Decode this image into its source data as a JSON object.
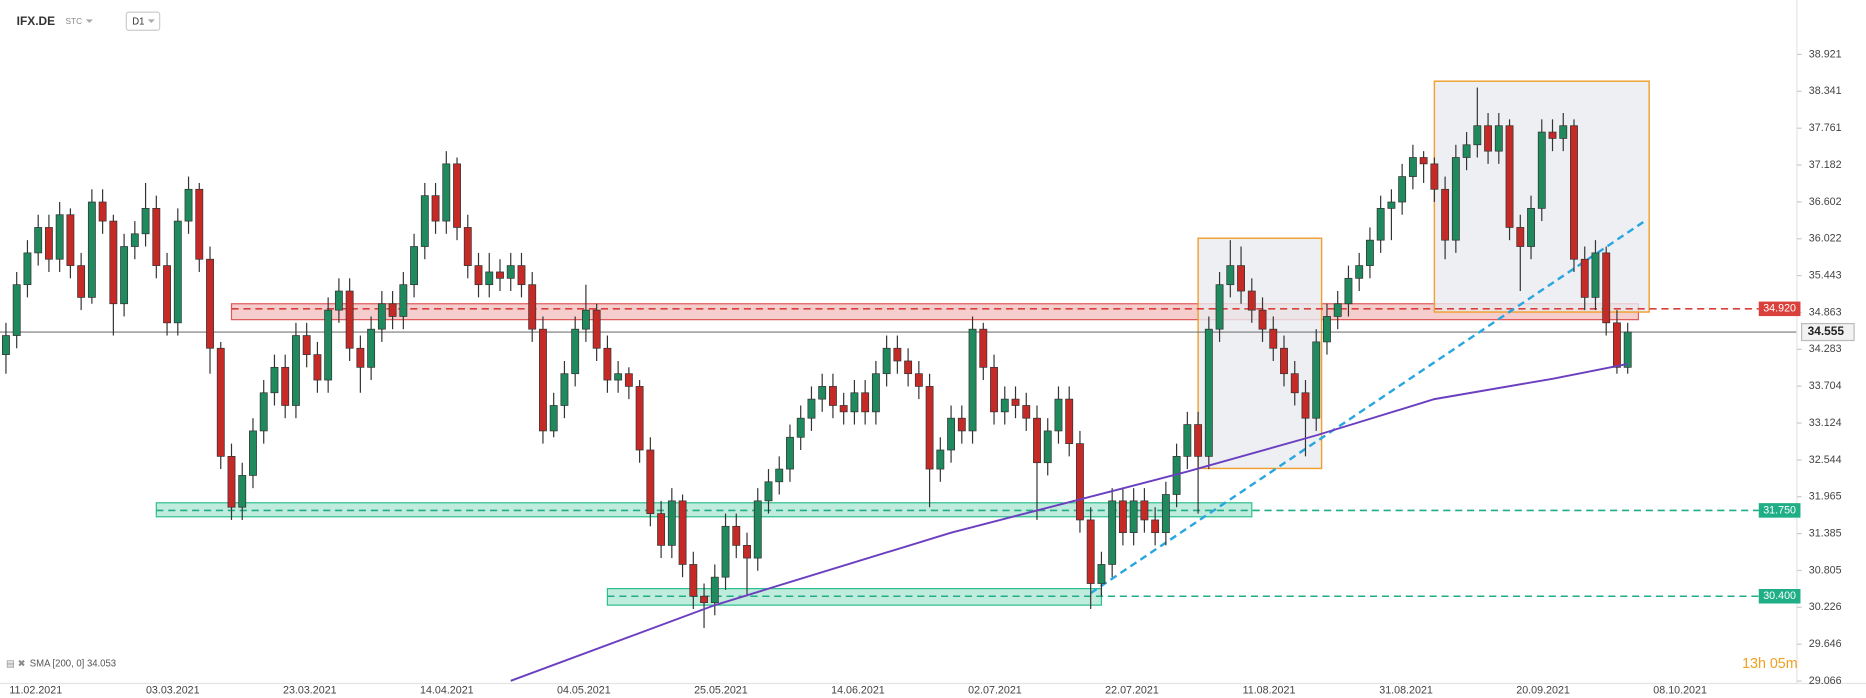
{
  "chart_data": {
    "type": "candlestick",
    "symbol": "IFX.DE",
    "source": "STC",
    "interval": "D1",
    "ylim": [
      29.028,
      39.777
    ],
    "yticks": [
      38.921,
      38.341,
      37.761,
      37.182,
      36.602,
      36.022,
      35.443,
      34.863,
      34.283,
      33.704,
      33.124,
      32.544,
      31.965,
      31.385,
      30.805,
      30.226,
      29.646,
      29.066
    ],
    "xticks": [
      "11.02.2021",
      "03.03.2021",
      "23.03.2021",
      "14.04.2021",
      "04.05.2021",
      "25.05.2021",
      "14.06.2021",
      "02.07.2021",
      "22.07.2021",
      "11.08.2021",
      "31.08.2021",
      "20.09.2021",
      "08.10.2021"
    ],
    "up_color": "#1f8a5e",
    "down_color": "#c62a26",
    "candles": [
      [
        34.2,
        34.7,
        33.9,
        34.5
      ],
      [
        34.5,
        35.5,
        34.3,
        35.3
      ],
      [
        35.3,
        36.0,
        35.1,
        35.8
      ],
      [
        35.8,
        36.4,
        35.6,
        36.2
      ],
      [
        36.2,
        36.4,
        35.5,
        35.7
      ],
      [
        35.7,
        36.6,
        35.5,
        36.4
      ],
      [
        36.4,
        36.5,
        35.4,
        35.6
      ],
      [
        35.6,
        35.8,
        34.9,
        35.1
      ],
      [
        35.1,
        36.8,
        35.0,
        36.6
      ],
      [
        36.6,
        36.8,
        36.1,
        36.3
      ],
      [
        36.3,
        36.4,
        34.5,
        35.0
      ],
      [
        35.0,
        36.1,
        34.8,
        35.9
      ],
      [
        35.9,
        36.3,
        35.7,
        36.1
      ],
      [
        36.1,
        36.9,
        35.9,
        36.5
      ],
      [
        36.5,
        36.7,
        35.4,
        35.6
      ],
      [
        35.6,
        35.8,
        34.5,
        34.7
      ],
      [
        34.7,
        36.5,
        34.5,
        36.3
      ],
      [
        36.3,
        37.0,
        36.1,
        36.8
      ],
      [
        36.8,
        36.9,
        35.5,
        35.7
      ],
      [
        35.7,
        35.9,
        33.9,
        34.3
      ],
      [
        34.3,
        34.4,
        32.4,
        32.6
      ],
      [
        32.6,
        32.8,
        31.6,
        31.8
      ],
      [
        31.8,
        32.5,
        31.6,
        32.3
      ],
      [
        32.3,
        33.2,
        32.1,
        33.0
      ],
      [
        33.0,
        33.8,
        32.8,
        33.6
      ],
      [
        33.6,
        34.2,
        33.4,
        34.0
      ],
      [
        34.0,
        34.2,
        33.2,
        33.4
      ],
      [
        33.4,
        34.7,
        33.2,
        34.5
      ],
      [
        34.5,
        34.7,
        34.0,
        34.2
      ],
      [
        34.2,
        34.4,
        33.6,
        33.8
      ],
      [
        33.8,
        35.1,
        33.6,
        34.9
      ],
      [
        34.9,
        35.4,
        34.7,
        35.2
      ],
      [
        35.2,
        35.4,
        34.1,
        34.3
      ],
      [
        34.3,
        34.5,
        33.6,
        34.0
      ],
      [
        34.0,
        34.8,
        33.8,
        34.6
      ],
      [
        34.6,
        35.2,
        34.4,
        35.0
      ],
      [
        35.0,
        35.2,
        34.6,
        34.8
      ],
      [
        34.8,
        35.5,
        34.6,
        35.3
      ],
      [
        35.3,
        36.1,
        35.1,
        35.9
      ],
      [
        35.9,
        36.9,
        35.7,
        36.7
      ],
      [
        36.7,
        36.9,
        36.1,
        36.3
      ],
      [
        36.3,
        37.4,
        36.1,
        37.2
      ],
      [
        37.2,
        37.3,
        36.0,
        36.2
      ],
      [
        36.2,
        36.4,
        35.4,
        35.6
      ],
      [
        35.6,
        35.8,
        35.1,
        35.3
      ],
      [
        35.3,
        35.8,
        35.1,
        35.5
      ],
      [
        35.5,
        35.7,
        35.2,
        35.4
      ],
      [
        35.4,
        35.8,
        35.2,
        35.6
      ],
      [
        35.6,
        35.8,
        35.1,
        35.3
      ],
      [
        35.3,
        35.5,
        34.4,
        34.6
      ],
      [
        34.6,
        34.8,
        32.8,
        33.0
      ],
      [
        33.0,
        33.6,
        32.9,
        33.4
      ],
      [
        33.4,
        34.1,
        33.2,
        33.9
      ],
      [
        33.9,
        34.8,
        33.7,
        34.6
      ],
      [
        34.6,
        35.3,
        34.4,
        34.9
      ],
      [
        34.9,
        35.0,
        34.1,
        34.3
      ],
      [
        34.3,
        34.5,
        33.6,
        33.8
      ],
      [
        33.8,
        34.1,
        33.6,
        33.9
      ],
      [
        33.9,
        34.0,
        33.5,
        33.7
      ],
      [
        33.7,
        33.8,
        32.5,
        32.7
      ],
      [
        32.7,
        32.9,
        31.5,
        31.7
      ],
      [
        31.7,
        31.9,
        31.0,
        31.2
      ],
      [
        31.2,
        32.1,
        31.0,
        31.9
      ],
      [
        31.9,
        32.0,
        30.7,
        30.9
      ],
      [
        30.9,
        31.1,
        30.2,
        30.4
      ],
      [
        30.4,
        30.6,
        29.9,
        30.3
      ],
      [
        30.3,
        30.9,
        30.1,
        30.7
      ],
      [
        30.7,
        31.7,
        30.5,
        31.5
      ],
      [
        31.5,
        31.7,
        31.0,
        31.2
      ],
      [
        31.2,
        31.4,
        30.4,
        31.0
      ],
      [
        31.0,
        32.1,
        30.8,
        31.9
      ],
      [
        31.9,
        32.4,
        31.7,
        32.2
      ],
      [
        32.2,
        32.6,
        32.0,
        32.4
      ],
      [
        32.4,
        33.1,
        32.2,
        32.9
      ],
      [
        32.9,
        33.4,
        32.7,
        33.2
      ],
      [
        33.2,
        33.7,
        33.0,
        33.5
      ],
      [
        33.5,
        33.9,
        33.3,
        33.7
      ],
      [
        33.7,
        33.9,
        33.2,
        33.4
      ],
      [
        33.4,
        33.6,
        33.1,
        33.3
      ],
      [
        33.3,
        33.8,
        33.1,
        33.6
      ],
      [
        33.6,
        33.8,
        33.1,
        33.3
      ],
      [
        33.3,
        34.1,
        33.1,
        33.9
      ],
      [
        33.9,
        34.5,
        33.7,
        34.3
      ],
      [
        34.3,
        34.5,
        33.9,
        34.1
      ],
      [
        34.1,
        34.3,
        33.7,
        33.9
      ],
      [
        33.9,
        34.1,
        33.5,
        33.7
      ],
      [
        33.7,
        33.9,
        31.8,
        32.4
      ],
      [
        32.4,
        32.9,
        32.2,
        32.7
      ],
      [
        32.7,
        33.4,
        32.5,
        33.2
      ],
      [
        33.2,
        33.4,
        32.8,
        33.0
      ],
      [
        33.0,
        34.8,
        32.8,
        34.6
      ],
      [
        34.6,
        34.7,
        33.8,
        34.0
      ],
      [
        34.0,
        34.2,
        33.1,
        33.3
      ],
      [
        33.3,
        33.7,
        33.1,
        33.5
      ],
      [
        33.5,
        33.7,
        33.2,
        33.4
      ],
      [
        33.4,
        33.6,
        33.0,
        33.2
      ],
      [
        33.2,
        33.4,
        31.6,
        32.5
      ],
      [
        32.5,
        33.2,
        32.3,
        33.0
      ],
      [
        33.0,
        33.7,
        32.8,
        33.5
      ],
      [
        33.5,
        33.7,
        32.6,
        32.8
      ],
      [
        32.8,
        33.0,
        31.4,
        31.6
      ],
      [
        31.6,
        31.8,
        30.2,
        30.6
      ],
      [
        30.6,
        31.1,
        30.4,
        30.9
      ],
      [
        30.9,
        32.1,
        30.7,
        31.9
      ],
      [
        31.9,
        32.1,
        31.2,
        31.4
      ],
      [
        31.4,
        32.1,
        31.2,
        31.9
      ],
      [
        31.9,
        32.1,
        31.4,
        31.6
      ],
      [
        31.6,
        31.8,
        31.2,
        31.4
      ],
      [
        31.4,
        32.2,
        31.2,
        32.0
      ],
      [
        32.0,
        32.8,
        31.8,
        32.6
      ],
      [
        32.6,
        33.3,
        32.4,
        33.1
      ],
      [
        33.1,
        33.3,
        31.7,
        32.6
      ],
      [
        32.6,
        34.8,
        32.4,
        34.6
      ],
      [
        34.6,
        35.5,
        34.4,
        35.3
      ],
      [
        35.3,
        36.0,
        35.1,
        35.6
      ],
      [
        35.6,
        35.9,
        35.0,
        35.2
      ],
      [
        35.2,
        35.4,
        34.7,
        34.9
      ],
      [
        34.9,
        35.1,
        34.4,
        34.6
      ],
      [
        34.6,
        34.8,
        34.1,
        34.3
      ],
      [
        34.3,
        34.5,
        33.7,
        33.9
      ],
      [
        33.9,
        34.1,
        33.4,
        33.6
      ],
      [
        33.6,
        33.8,
        32.6,
        33.2
      ],
      [
        33.2,
        34.6,
        33.0,
        34.4
      ],
      [
        34.4,
        35.0,
        34.2,
        34.8
      ],
      [
        34.8,
        35.2,
        34.6,
        35.0
      ],
      [
        35.0,
        35.6,
        34.8,
        35.4
      ],
      [
        35.4,
        35.8,
        35.2,
        35.6
      ],
      [
        35.6,
        36.2,
        35.4,
        36.0
      ],
      [
        36.0,
        36.7,
        35.8,
        36.5
      ],
      [
        36.5,
        36.8,
        36.0,
        36.6
      ],
      [
        36.6,
        37.2,
        36.4,
        37.0
      ],
      [
        37.0,
        37.5,
        36.8,
        37.3
      ],
      [
        37.3,
        37.4,
        36.9,
        37.2
      ],
      [
        37.2,
        37.3,
        36.6,
        36.8
      ],
      [
        36.8,
        37.0,
        35.7,
        36.0
      ],
      [
        36.0,
        37.5,
        35.8,
        37.3
      ],
      [
        37.3,
        37.7,
        37.1,
        37.5
      ],
      [
        37.5,
        38.4,
        37.3,
        37.8
      ],
      [
        37.8,
        38.0,
        37.2,
        37.4
      ],
      [
        37.4,
        38.0,
        37.2,
        37.8
      ],
      [
        37.8,
        37.9,
        36.0,
        36.2
      ],
      [
        36.2,
        36.4,
        35.2,
        35.9
      ],
      [
        35.9,
        36.7,
        35.7,
        36.5
      ],
      [
        36.5,
        37.9,
        36.3,
        37.7
      ],
      [
        37.7,
        37.9,
        37.4,
        37.6
      ],
      [
        37.6,
        38.0,
        37.4,
        37.8
      ],
      [
        37.8,
        37.9,
        35.5,
        35.7
      ],
      [
        35.7,
        35.9,
        34.9,
        35.1
      ],
      [
        35.1,
        36.0,
        34.9,
        35.8
      ],
      [
        35.8,
        35.9,
        34.5,
        34.7
      ],
      [
        34.7,
        34.9,
        33.9,
        34.0
      ],
      [
        34.0,
        34.7,
        33.9,
        34.555
      ]
    ],
    "sma": {
      "name": "SMA [200, 0] 34.053",
      "color": "#6b3fc0",
      "x": [
        47,
        66,
        88,
        99,
        110,
        122,
        133,
        144,
        151
      ],
      "values": [
        29.07,
        30.26,
        31.4,
        31.88,
        32.36,
        32.93,
        33.5,
        33.82,
        34.053
      ]
    },
    "current_price": 34.555,
    "levels": [
      {
        "value": 34.92,
        "label": "34.920",
        "color": "#d9403c"
      },
      {
        "value": 31.75,
        "label": "31.750",
        "color": "#1fae85"
      },
      {
        "value": 30.4,
        "label": "30.400",
        "color": "#1fae85"
      }
    ],
    "zones": [
      {
        "from": 21,
        "to": 152,
        "low": 34.75,
        "high": 35.0,
        "color": "#e05858"
      },
      {
        "from": 14,
        "to": 116,
        "low": 31.65,
        "high": 31.87,
        "color": "#2fbf8f"
      },
      {
        "from": 56,
        "to": 102,
        "low": 30.26,
        "high": 30.52,
        "color": "#2fbf8f"
      }
    ],
    "boxes": [
      {
        "from": 111,
        "to": 122.5,
        "low": 32.41,
        "high": 36.03
      },
      {
        "from": 133,
        "to": 153,
        "low": 34.87,
        "high": 38.5
      }
    ],
    "trendline": {
      "from": 101,
      "to": 152.5,
      "start": 30.45,
      "end": 36.29,
      "color": "#29a6e0"
    },
    "timer": "13h 05m"
  }
}
